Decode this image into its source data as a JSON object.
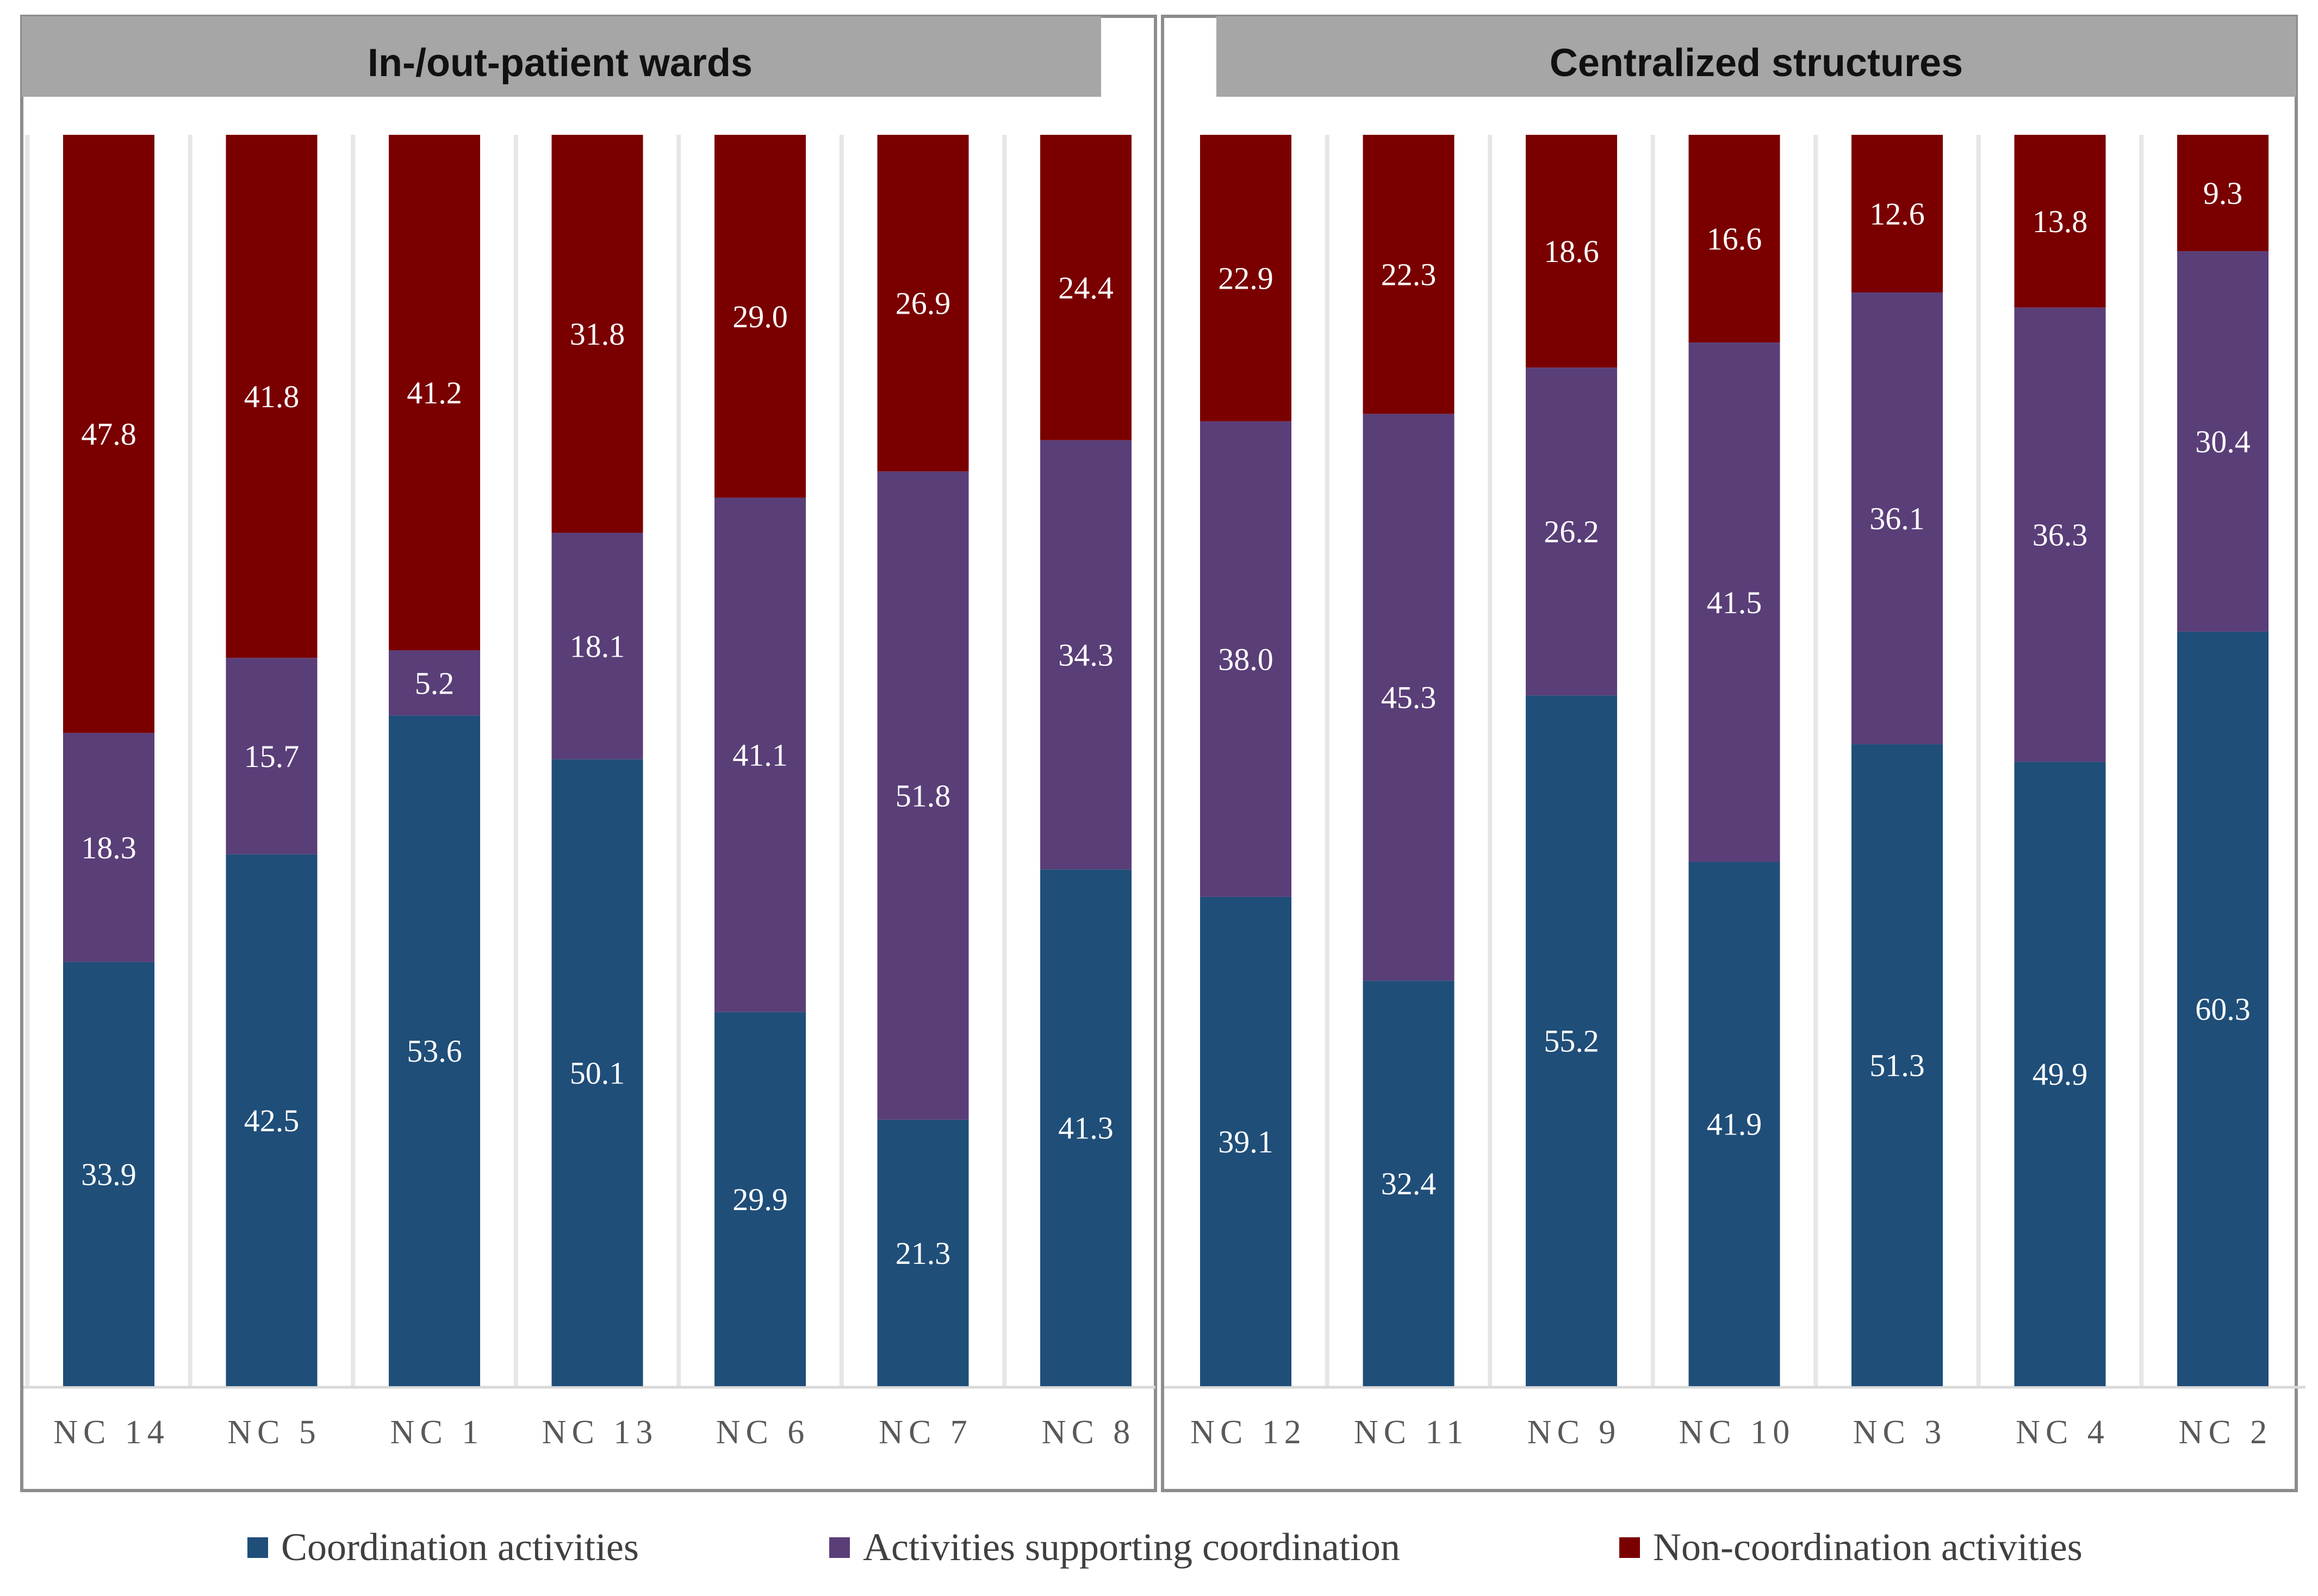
{
  "chart_data": {
    "type": "bar",
    "stacked": true,
    "normalized": true,
    "ylim": [
      0,
      100
    ],
    "grid": false,
    "legend_position": "bottom",
    "series": [
      {
        "name": "Coordination activities",
        "color": "#1F4E79"
      },
      {
        "name": "Activities supporting coordination",
        "color": "#5A3E78"
      },
      {
        "name": "Non-coordination activities",
        "color": "#7A0000"
      }
    ],
    "panels": [
      {
        "title": "In-/out-patient wards",
        "categories": [
          "NC 14",
          "NC 5",
          "NC 1",
          "NC 13",
          "NC 6",
          "NC 7",
          "NC 8"
        ],
        "values": {
          "coordination": [
            33.9,
            42.5,
            53.6,
            50.1,
            29.9,
            21.3,
            41.3
          ],
          "supporting": [
            18.3,
            15.7,
            5.2,
            18.1,
            41.1,
            51.8,
            34.3
          ],
          "non_coordination": [
            47.8,
            41.8,
            41.2,
            31.8,
            29.0,
            26.9,
            24.4
          ]
        },
        "labels": {
          "coordination": [
            "33.9",
            "42.5",
            "53.6",
            "50.1",
            "29.9",
            "21.3",
            "41.3"
          ],
          "supporting": [
            "18.3",
            "15.7",
            "5.2",
            "18.1",
            "41.1",
            "51.8",
            "34.3"
          ],
          "non_coordination": [
            "47.8",
            "41.8",
            "41.2",
            "31.8",
            "29.0",
            "26.9",
            "24.4"
          ]
        }
      },
      {
        "title": "Centralized structures",
        "categories": [
          "NC 12",
          "NC 11",
          "NC 9",
          "NC 10",
          "NC 3",
          "NC 4",
          "NC 2"
        ],
        "values": {
          "coordination": [
            39.1,
            32.4,
            55.2,
            41.9,
            51.3,
            49.9,
            60.3
          ],
          "supporting": [
            38.0,
            45.3,
            26.2,
            41.5,
            36.1,
            36.3,
            30.4
          ],
          "non_coordination": [
            22.9,
            22.3,
            18.6,
            16.6,
            12.6,
            13.8,
            9.3
          ]
        },
        "labels": {
          "coordination": [
            "39.1",
            "32.4",
            "55.2",
            "41.9",
            "51.3",
            "49.9",
            "60.3"
          ],
          "supporting": [
            "38.0",
            "45.3",
            "26.2",
            "41.5",
            "36.1",
            "36.3",
            "30.4"
          ],
          "non_coordination": [
            "22.9",
            "22.3",
            "18.6",
            "16.6",
            "12.6",
            "13.8",
            "9.3"
          ]
        }
      }
    ]
  }
}
